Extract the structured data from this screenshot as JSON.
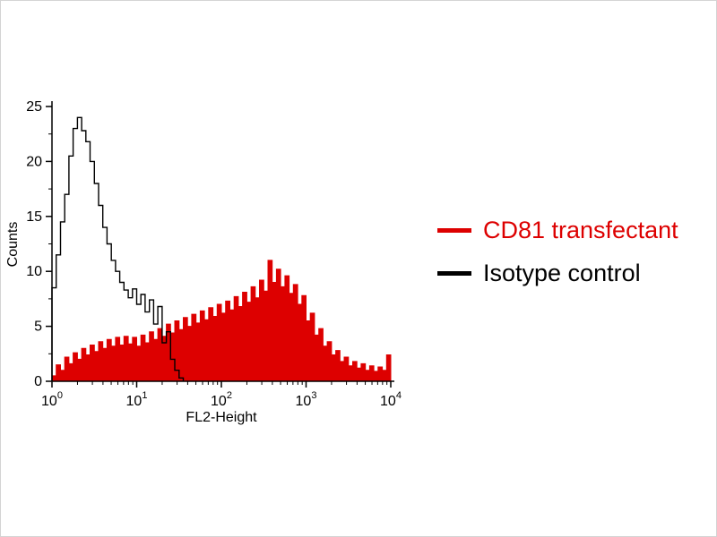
{
  "chart_data": {
    "type": "area",
    "title": "",
    "xlabel": "FL2-Height",
    "ylabel": "Counts",
    "x_scale": "log10",
    "x_log_range": [
      0,
      4
    ],
    "ylim": [
      0,
      25
    ],
    "y_ticks": [
      0,
      5,
      10,
      15,
      20,
      25
    ],
    "y_minor_step": 2.5,
    "x_tick_exponents": [
      0,
      1,
      2,
      3,
      4
    ],
    "grid": false,
    "legend_position": "right",
    "legend": [
      {
        "label": "CD81 transfectant",
        "color": "#dd0000",
        "style": "filled"
      },
      {
        "label": "Isotype control",
        "color": "#000000",
        "style": "line"
      }
    ],
    "series": [
      {
        "name": "CD81 transfectant",
        "type": "filled-histogram",
        "color": "#dd0000",
        "log_x_start": 0,
        "log_x_step": 0.05,
        "values": [
          0.5,
          1.5,
          1.0,
          2.2,
          1.6,
          2.6,
          2.0,
          3.0,
          2.4,
          3.3,
          2.7,
          3.6,
          3.0,
          3.8,
          3.2,
          4.0,
          3.3,
          4.1,
          3.4,
          4.0,
          3.2,
          4.2,
          3.5,
          4.5,
          3.8,
          4.8,
          4.1,
          5.2,
          4.4,
          5.5,
          4.7,
          5.8,
          5.0,
          6.1,
          5.3,
          6.4,
          5.6,
          6.7,
          5.9,
          7.0,
          6.2,
          7.3,
          6.5,
          7.7,
          6.8,
          8.1,
          7.2,
          8.6,
          7.6,
          9.2,
          8.2,
          11.0,
          9.0,
          10.2,
          8.6,
          9.6,
          8.0,
          8.8,
          7.0,
          7.8,
          5.5,
          6.2,
          4.2,
          4.8,
          3.2,
          3.6,
          2.4,
          2.8,
          1.8,
          2.2,
          1.4,
          1.8,
          1.2,
          1.6,
          1.0,
          1.4,
          0.9,
          1.3,
          1.0,
          2.4
        ]
      },
      {
        "name": "Isotype control",
        "type": "open-histogram",
        "color": "#000000",
        "log_x_start": 0,
        "log_x_step": 0.05,
        "values": [
          8.5,
          11.5,
          14.5,
          17.0,
          20.5,
          23.0,
          24.0,
          22.8,
          21.8,
          20.0,
          18.0,
          16.0,
          14.0,
          12.5,
          11.0,
          10.0,
          9.0,
          8.3,
          7.6,
          8.4,
          7.0,
          7.9,
          6.3,
          7.4,
          5.2,
          6.8,
          3.5,
          4.5,
          2.0,
          1.0,
          0.3
        ]
      }
    ]
  }
}
